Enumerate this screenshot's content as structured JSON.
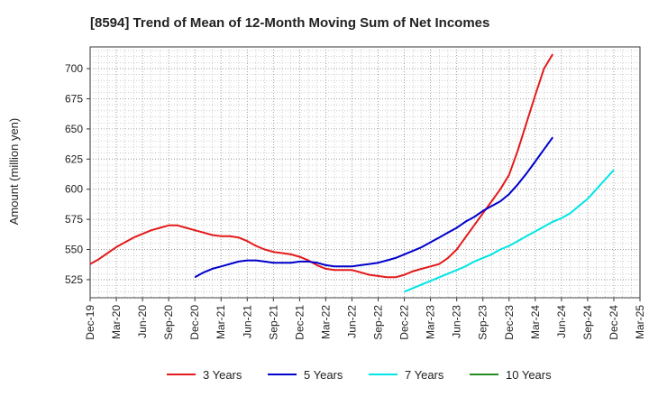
{
  "chart_data": {
    "type": "line",
    "title": "[8594]  Trend of Mean of 12-Month Moving Sum of Net Incomes",
    "xlabel": "",
    "ylabel": "Amount (million yen)",
    "x_ticks": [
      "Dec-19",
      "Mar-20",
      "Jun-20",
      "Sep-20",
      "Dec-20",
      "Mar-21",
      "Jun-21",
      "Sep-21",
      "Dec-21",
      "Mar-22",
      "Jun-22",
      "Sep-22",
      "Dec-22",
      "Mar-23",
      "Jun-23",
      "Sep-23",
      "Dec-23",
      "Mar-24",
      "Jun-24",
      "Sep-24",
      "Dec-24",
      "Mar-25"
    ],
    "y_ticks": [
      525,
      550,
      575,
      600,
      625,
      650,
      675,
      700
    ],
    "ylim": [
      510,
      718
    ],
    "x_range_months": [
      0,
      63
    ],
    "grid": true,
    "legend_position": "bottom",
    "series": [
      {
        "name": "3 Years",
        "color": "#e31a1c",
        "points": [
          [
            0,
            538
          ],
          [
            1,
            542
          ],
          [
            2,
            547
          ],
          [
            3,
            552
          ],
          [
            4,
            556
          ],
          [
            5,
            560
          ],
          [
            6,
            563
          ],
          [
            7,
            566
          ],
          [
            8,
            568
          ],
          [
            9,
            570
          ],
          [
            10,
            570
          ],
          [
            11,
            568
          ],
          [
            12,
            566
          ],
          [
            13,
            564
          ],
          [
            14,
            562
          ],
          [
            15,
            561
          ],
          [
            16,
            561
          ],
          [
            17,
            560
          ],
          [
            18,
            557
          ],
          [
            19,
            553
          ],
          [
            20,
            550
          ],
          [
            21,
            548
          ],
          [
            22,
            547
          ],
          [
            23,
            546
          ],
          [
            24,
            544
          ],
          [
            25,
            541
          ],
          [
            26,
            537
          ],
          [
            27,
            534
          ],
          [
            28,
            533
          ],
          [
            29,
            533
          ],
          [
            30,
            533
          ],
          [
            31,
            531
          ],
          [
            32,
            529
          ],
          [
            33,
            528
          ],
          [
            34,
            527
          ],
          [
            35,
            527
          ],
          [
            36,
            529
          ],
          [
            37,
            532
          ],
          [
            38,
            534
          ],
          [
            39,
            536
          ],
          [
            40,
            538
          ],
          [
            41,
            543
          ],
          [
            42,
            550
          ],
          [
            43,
            560
          ],
          [
            44,
            570
          ],
          [
            45,
            580
          ],
          [
            46,
            590
          ],
          [
            47,
            600
          ],
          [
            48,
            612
          ],
          [
            49,
            632
          ],
          [
            50,
            655
          ],
          [
            51,
            678
          ],
          [
            52,
            700
          ],
          [
            53,
            712
          ]
        ]
      },
      {
        "name": "5 Years",
        "color": "#0000cc",
        "points": [
          [
            12,
            527
          ],
          [
            13,
            531
          ],
          [
            14,
            534
          ],
          [
            15,
            536
          ],
          [
            16,
            538
          ],
          [
            17,
            540
          ],
          [
            18,
            541
          ],
          [
            19,
            541
          ],
          [
            20,
            540
          ],
          [
            21,
            539
          ],
          [
            22,
            539
          ],
          [
            23,
            539
          ],
          [
            24,
            540
          ],
          [
            25,
            540
          ],
          [
            26,
            539
          ],
          [
            27,
            537
          ],
          [
            28,
            536
          ],
          [
            29,
            536
          ],
          [
            30,
            536
          ],
          [
            31,
            537
          ],
          [
            32,
            538
          ],
          [
            33,
            539
          ],
          [
            34,
            541
          ],
          [
            35,
            543
          ],
          [
            36,
            546
          ],
          [
            37,
            549
          ],
          [
            38,
            552
          ],
          [
            39,
            556
          ],
          [
            40,
            560
          ],
          [
            41,
            564
          ],
          [
            42,
            568
          ],
          [
            43,
            573
          ],
          [
            44,
            577
          ],
          [
            45,
            582
          ],
          [
            46,
            586
          ],
          [
            47,
            590
          ],
          [
            48,
            596
          ],
          [
            49,
            604
          ],
          [
            50,
            613
          ],
          [
            51,
            623
          ],
          [
            52,
            633
          ],
          [
            53,
            643
          ]
        ]
      },
      {
        "name": "7 Years",
        "color": "#00e5e5",
        "points": [
          [
            36,
            515
          ],
          [
            37,
            518
          ],
          [
            38,
            521
          ],
          [
            39,
            524
          ],
          [
            40,
            527
          ],
          [
            41,
            530
          ],
          [
            42,
            533
          ],
          [
            43,
            536
          ],
          [
            44,
            540
          ],
          [
            45,
            543
          ],
          [
            46,
            546
          ],
          [
            47,
            550
          ],
          [
            48,
            553
          ],
          [
            49,
            557
          ],
          [
            50,
            561
          ],
          [
            51,
            565
          ],
          [
            52,
            569
          ],
          [
            53,
            573
          ],
          [
            54,
            576
          ],
          [
            55,
            580
          ],
          [
            56,
            586
          ],
          [
            57,
            592
          ],
          [
            58,
            600
          ],
          [
            59,
            608
          ],
          [
            60,
            616
          ]
        ]
      },
      {
        "name": "10 Years",
        "color": "#228b22",
        "points": []
      }
    ]
  }
}
